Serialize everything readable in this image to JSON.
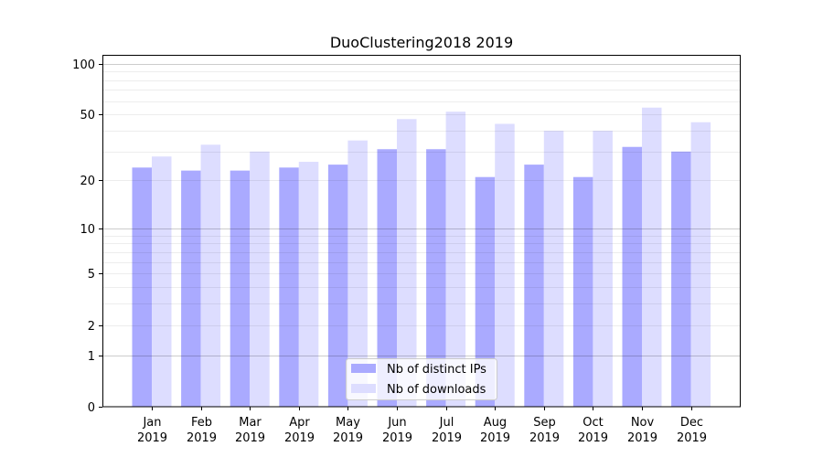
{
  "chart_data": {
    "type": "bar",
    "title": "DuoClustering2018 2019",
    "xlabel": "",
    "ylabel": "",
    "yscale": "log(1+y)",
    "ylim": [
      0,
      110
    ],
    "yticks": [
      0,
      1,
      2,
      5,
      10,
      20,
      50,
      100
    ],
    "grid": true,
    "legend_position": "bottom-center",
    "categories": [
      [
        "Jan",
        "2019"
      ],
      [
        "Feb",
        "2019"
      ],
      [
        "Mar",
        "2019"
      ],
      [
        "Apr",
        "2019"
      ],
      [
        "May",
        "2019"
      ],
      [
        "Jun",
        "2019"
      ],
      [
        "Jul",
        "2019"
      ],
      [
        "Aug",
        "2019"
      ],
      [
        "Sep",
        "2019"
      ],
      [
        "Oct",
        "2019"
      ],
      [
        "Nov",
        "2019"
      ],
      [
        "Dec",
        "2019"
      ]
    ],
    "series": [
      {
        "name": "Nb of distinct IPs",
        "color": "#aaaaff",
        "values": [
          24,
          23,
          23,
          24,
          25,
          31,
          31,
          21,
          25,
          21,
          32,
          30
        ]
      },
      {
        "name": "Nb of downloads",
        "color": "#ddddff",
        "values": [
          28,
          33,
          30,
          26,
          35,
          47,
          52,
          44,
          40,
          40,
          55,
          45
        ]
      }
    ]
  }
}
